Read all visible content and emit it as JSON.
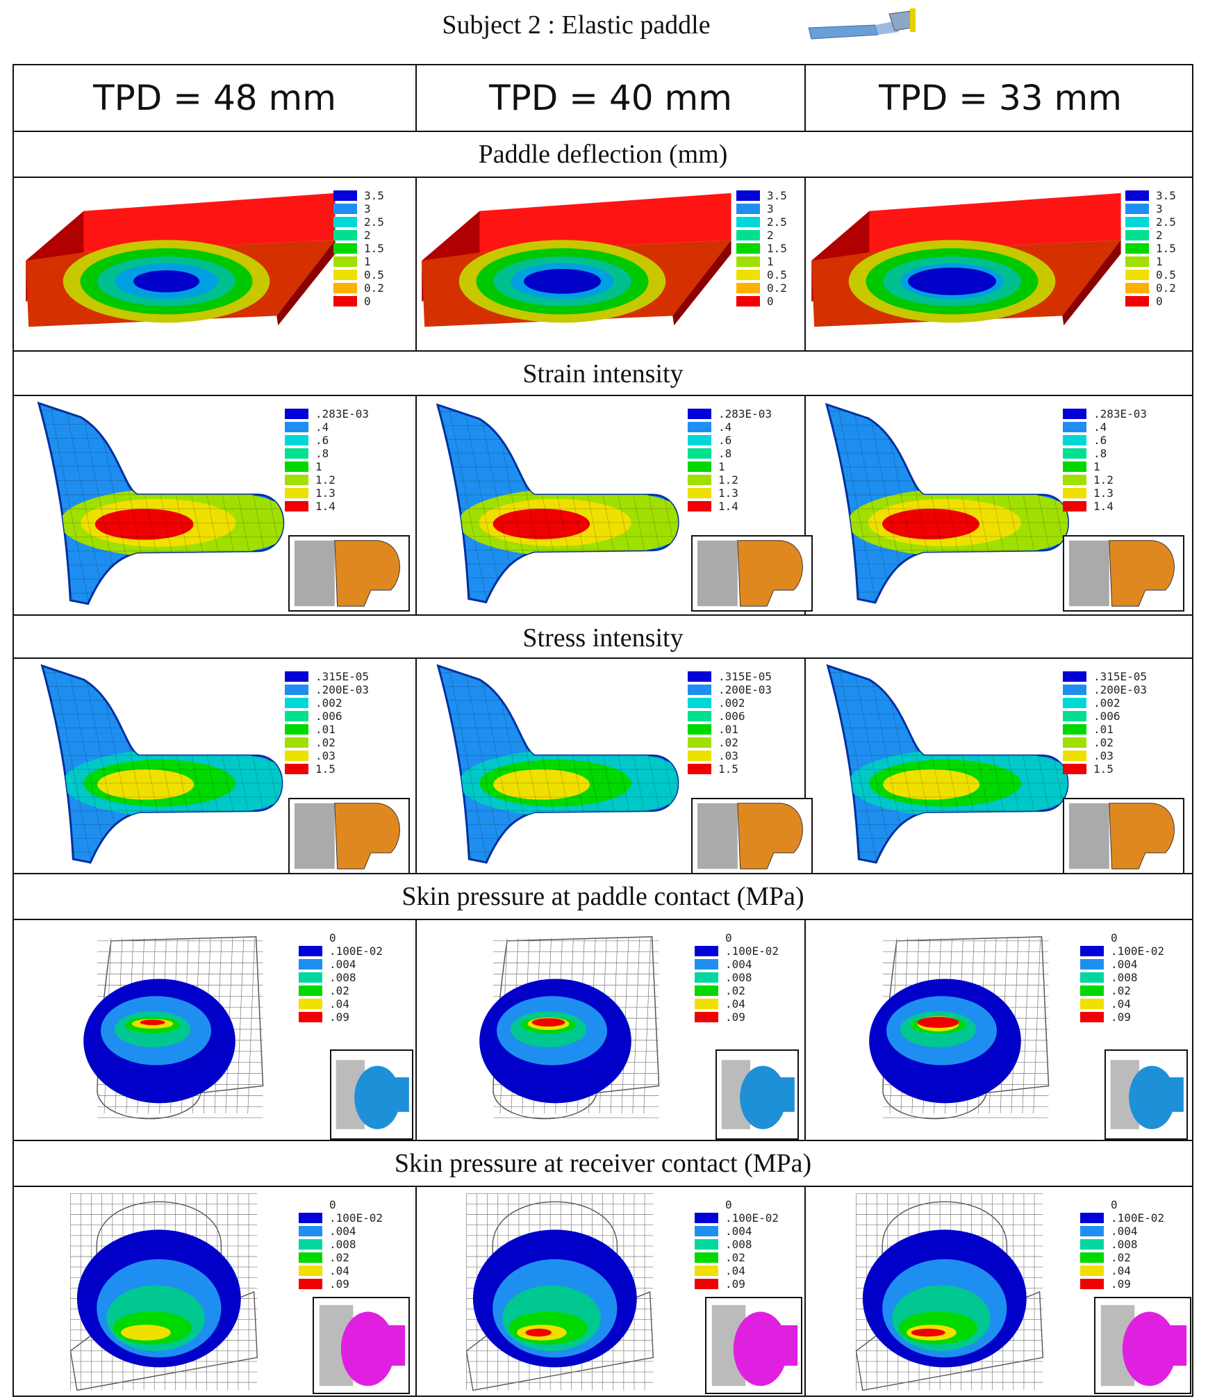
{
  "title": "Subject 2 : Elastic paddle",
  "columns": [
    "TPD = 48 mm",
    "TPD = 40 mm",
    "TPD = 33 mm"
  ],
  "sections": {
    "deflection": {
      "title": "Paddle deflection (mm)",
      "legend": [
        "3.5",
        "3",
        "2.5",
        "2",
        "1.5",
        "1",
        "0.5",
        "0.2",
        "0"
      ],
      "colors": [
        "#0000d8",
        "#1e8ff0",
        "#00d8d8",
        "#00e090",
        "#00d800",
        "#a0e000",
        "#f0e000",
        "#ffb000",
        "#f00000"
      ]
    },
    "strain": {
      "title": "Strain intensity",
      "legend": [
        ".283E-03",
        ".4",
        ".6",
        ".8",
        "1",
        "1.2",
        "1.3",
        "1.4"
      ],
      "colors": [
        "#0000d8",
        "#1e8ff0",
        "#00d8d8",
        "#00e090",
        "#00d800",
        "#a0e000",
        "#f0e000",
        "#f00000"
      ]
    },
    "stress": {
      "title": "Stress intensity",
      "legend": [
        ".315E-05",
        ".200E-03",
        ".002",
        ".006",
        ".01",
        ".02",
        ".03",
        "1.5"
      ],
      "colors": [
        "#0000d8",
        "#1e8ff0",
        "#00d8d8",
        "#00e090",
        "#00d800",
        "#a0e000",
        "#f0e000",
        "#f00000"
      ]
    },
    "paddle_pressure": {
      "title": "Skin pressure at paddle contact (MPa)",
      "legend": [
        "0",
        ".100E-02",
        ".004",
        ".008",
        ".02",
        ".04",
        ".09"
      ],
      "colors": [
        "#0000d8",
        "#1e8ff0",
        "#00d8a0",
        "#00d800",
        "#f0e000",
        "#f00000"
      ]
    },
    "receiver_pressure": {
      "title": "Skin pressure at receiver contact (MPa)",
      "legend": [
        "0",
        ".100E-02",
        ".004",
        ".008",
        ".02",
        ".04",
        ".09"
      ],
      "colors": [
        "#0000d8",
        "#1e8ff0",
        "#00d8a0",
        "#00d800",
        "#f0e000",
        "#f00000"
      ]
    }
  }
}
